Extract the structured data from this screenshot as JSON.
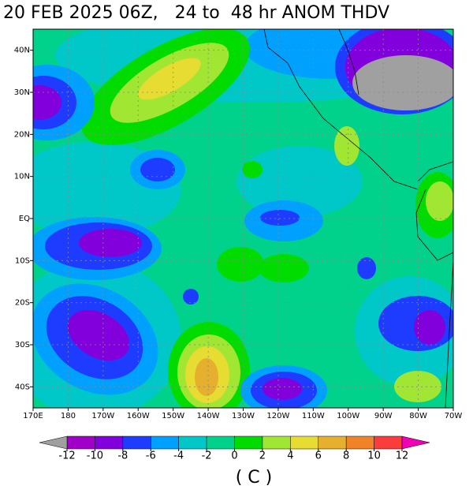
{
  "map": {
    "title": "20 FEB 2025 06Z,   24 to  48 hr ANOM THDV",
    "xlim": [
      170,
      290
    ],
    "ylim": [
      -45,
      45
    ],
    "xticks": [
      {
        "value": 170,
        "label": "170E"
      },
      {
        "value": 180,
        "label": "180"
      },
      {
        "value": 190,
        "label": "170W"
      },
      {
        "value": 200,
        "label": "160W"
      },
      {
        "value": 210,
        "label": "150W"
      },
      {
        "value": 220,
        "label": "140W"
      },
      {
        "value": 230,
        "label": "130W"
      },
      {
        "value": 240,
        "label": "120W"
      },
      {
        "value": 250,
        "label": "110W"
      },
      {
        "value": 260,
        "label": "100W"
      },
      {
        "value": 270,
        "label": "90W"
      },
      {
        "value": 280,
        "label": "80W"
      },
      {
        "value": 290,
        "label": "70W"
      }
    ],
    "yticks": [
      {
        "value": 40,
        "label": "40N"
      },
      {
        "value": 30,
        "label": "30N"
      },
      {
        "value": 20,
        "label": "20N"
      },
      {
        "value": 10,
        "label": "10N"
      },
      {
        "value": 0,
        "label": "EQ"
      },
      {
        "value": -10,
        "label": "10S"
      },
      {
        "value": -20,
        "label": "20S"
      },
      {
        "value": -30,
        "label": "30S"
      },
      {
        "value": -40,
        "label": "40S"
      }
    ],
    "grid": true
  },
  "colorbar": {
    "ticks": [
      -12,
      -10,
      -8,
      -6,
      -4,
      -2,
      0,
      2,
      4,
      6,
      8,
      10,
      12
    ],
    "colors": [
      "#a000c8",
      "#8200dc",
      "#1e3cff",
      "#00a0ff",
      "#00c8c8",
      "#00d28c",
      "#00dc00",
      "#a0e632",
      "#e6dc32",
      "#e6af2d",
      "#f08228",
      "#fa3c3c"
    ],
    "under_color": "#a0a0a0",
    "over_color": "#f000b4",
    "units": "( C )"
  }
}
